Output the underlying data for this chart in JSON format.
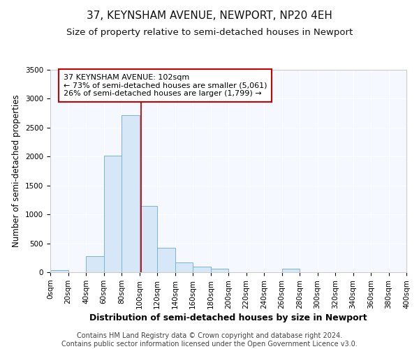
{
  "title": "37, KEYNSHAM AVENUE, NEWPORT, NP20 4EH",
  "subtitle": "Size of property relative to semi-detached houses in Newport",
  "xlabel": "Distribution of semi-detached houses by size in Newport",
  "ylabel": "Number of semi-detached properties",
  "footer": "Contains HM Land Registry data © Crown copyright and database right 2024.\nContains public sector information licensed under the Open Government Licence v3.0.",
  "bin_edges": [
    0,
    20,
    40,
    60,
    80,
    100,
    120,
    140,
    160,
    180,
    200,
    220,
    240,
    260,
    280,
    300,
    320,
    340,
    360,
    380,
    400
  ],
  "bar_heights": [
    40,
    0,
    280,
    2010,
    2720,
    1150,
    420,
    175,
    100,
    55,
    0,
    0,
    0,
    55,
    0,
    0,
    0,
    0,
    0,
    0
  ],
  "bar_color": "#d6e8f7",
  "bar_edgecolor": "#7ab3d8",
  "property_size": 102,
  "vline_color": "#cc0000",
  "annotation_text": "37 KEYNSHAM AVENUE: 102sqm\n← 73% of semi-detached houses are smaller (5,061)\n26% of semi-detached houses are larger (1,799) →",
  "annotation_box_facecolor": "#ffffff",
  "annotation_border_color": "#cc0000",
  "ylim": [
    0,
    3500
  ],
  "xlim": [
    0,
    400
  ],
  "title_fontsize": 11,
  "subtitle_fontsize": 9.5,
  "annotation_fontsize": 8,
  "footer_fontsize": 7,
  "xlabel_fontsize": 9,
  "ylabel_fontsize": 8.5,
  "tick_fontsize": 7.5,
  "background_color": "#ffffff",
  "plot_bg_color": "#f5f8ff"
}
